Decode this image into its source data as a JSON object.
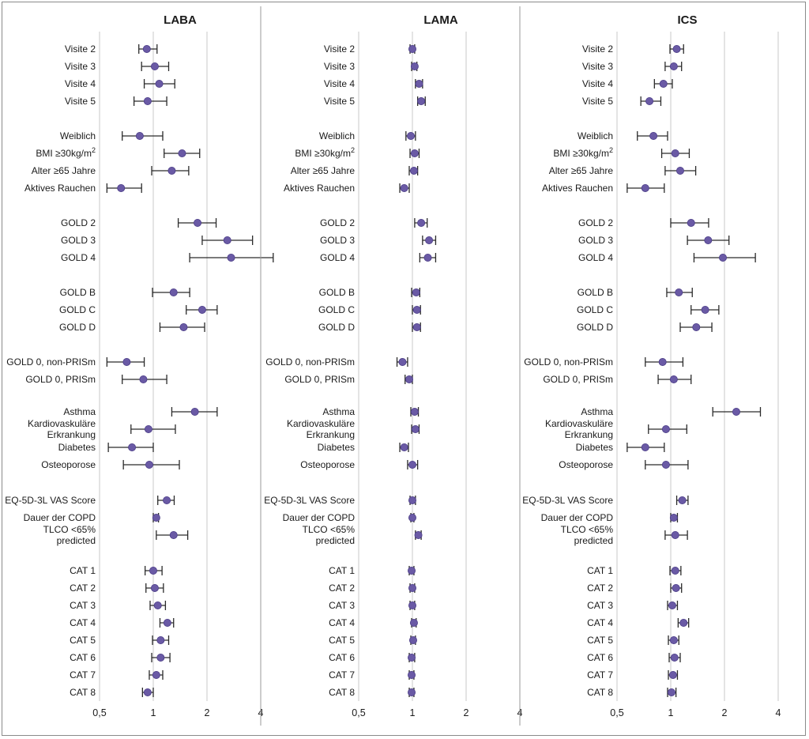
{
  "colors": {
    "point": "#6a5aa5",
    "point_stroke": "#4a3c86",
    "whisker": "#2a2a2a",
    "gridline": "#c8c8c8",
    "divider": "#9a9a9a",
    "text": "#1a1a1a"
  },
  "chart_data": [
    {
      "type": "scatter",
      "title": "LABA",
      "x_scale": "log",
      "xlim": [
        0.5,
        4
      ],
      "x_ticks": [
        0.5,
        1,
        2,
        4
      ],
      "x_tick_labels": [
        "0,5",
        "1",
        "2",
        "4"
      ],
      "rows": [
        {
          "label": "Visite 2",
          "est": 0.92,
          "lo": 0.83,
          "hi": 1.05
        },
        {
          "label": "Visite 3",
          "est": 1.02,
          "lo": 0.86,
          "hi": 1.22
        },
        {
          "label": "Visite 4",
          "est": 1.08,
          "lo": 0.89,
          "hi": 1.32
        },
        {
          "label": "Visite 5",
          "est": 0.93,
          "lo": 0.78,
          "hi": 1.19
        },
        {
          "label": "Weiblich",
          "est": 0.84,
          "lo": 0.67,
          "hi": 1.13
        },
        {
          "label": "BMI ≥30kg/m²",
          "est": 1.45,
          "lo": 1.15,
          "hi": 1.82
        },
        {
          "label": "Alter ≥65 Jahre",
          "est": 1.27,
          "lo": 0.98,
          "hi": 1.58
        },
        {
          "label": "Aktives Rauchen",
          "est": 0.66,
          "lo": 0.55,
          "hi": 0.86
        },
        {
          "label": "GOLD 2",
          "est": 1.77,
          "lo": 1.38,
          "hi": 2.25
        },
        {
          "label": "GOLD 3",
          "est": 2.6,
          "lo": 1.88,
          "hi": 3.6
        },
        {
          "label": "GOLD 4",
          "est": 2.73,
          "lo": 1.6,
          "hi": 4.7
        },
        {
          "label": "GOLD B",
          "est": 1.3,
          "lo": 0.99,
          "hi": 1.6
        },
        {
          "label": "GOLD C",
          "est": 1.88,
          "lo": 1.53,
          "hi": 2.28
        },
        {
          "label": "GOLD D",
          "est": 1.48,
          "lo": 1.09,
          "hi": 1.94
        },
        {
          "label": "GOLD 0, non-PRISm",
          "est": 0.71,
          "lo": 0.55,
          "hi": 0.89
        },
        {
          "label": "GOLD 0, PRISm",
          "est": 0.88,
          "lo": 0.67,
          "hi": 1.19
        },
        {
          "label": "Asthma",
          "est": 1.71,
          "lo": 1.27,
          "hi": 2.28
        },
        {
          "label": "Kardiovaskuläre Erkrankung",
          "est": 0.94,
          "lo": 0.75,
          "hi": 1.33
        },
        {
          "label": "Diabetes",
          "est": 0.76,
          "lo": 0.56,
          "hi": 1.0
        },
        {
          "label": "Osteoporose",
          "est": 0.95,
          "lo": 0.68,
          "hi": 1.4
        },
        {
          "label": "EQ-5D-3L VAS Score",
          "est": 1.19,
          "lo": 1.06,
          "hi": 1.31
        },
        {
          "label": "Dauer der COPD",
          "est": 1.04,
          "lo": 1.0,
          "hi": 1.07
        },
        {
          "label": "TLCO <65% predicted",
          "est": 1.3,
          "lo": 1.04,
          "hi": 1.56
        },
        {
          "label": "CAT 1",
          "est": 1.0,
          "lo": 0.9,
          "hi": 1.12
        },
        {
          "label": "CAT 2",
          "est": 1.02,
          "lo": 0.91,
          "hi": 1.14
        },
        {
          "label": "CAT 3",
          "est": 1.06,
          "lo": 0.96,
          "hi": 1.17
        },
        {
          "label": "CAT 4",
          "est": 1.2,
          "lo": 1.09,
          "hi": 1.3
        },
        {
          "label": "CAT 5",
          "est": 1.1,
          "lo": 0.99,
          "hi": 1.22
        },
        {
          "label": "CAT 6",
          "est": 1.1,
          "lo": 0.98,
          "hi": 1.24
        },
        {
          "label": "CAT 7",
          "est": 1.04,
          "lo": 0.95,
          "hi": 1.13
        },
        {
          "label": "CAT 8",
          "est": 0.93,
          "lo": 0.87,
          "hi": 1.0
        }
      ]
    },
    {
      "type": "scatter",
      "title": "LAMA",
      "x_scale": "log",
      "xlim": [
        0.5,
        4
      ],
      "x_ticks": [
        0.5,
        1,
        2,
        4
      ],
      "x_tick_labels": [
        "0,5",
        "1",
        "2",
        "4"
      ],
      "rows": [
        {
          "label": "Visite 2",
          "est": 1.0,
          "lo": 0.97,
          "hi": 1.03
        },
        {
          "label": "Visite 3",
          "est": 1.03,
          "lo": 0.99,
          "hi": 1.06
        },
        {
          "label": "Visite 4",
          "est": 1.09,
          "lo": 1.04,
          "hi": 1.14
        },
        {
          "label": "Visite 5",
          "est": 1.12,
          "lo": 1.07,
          "hi": 1.18
        },
        {
          "label": "Weiblich",
          "est": 0.98,
          "lo": 0.92,
          "hi": 1.04
        },
        {
          "label": "BMI ≥30kg/m²",
          "est": 1.03,
          "lo": 0.97,
          "hi": 1.09
        },
        {
          "label": "Alter ≥65 Jahre",
          "est": 1.02,
          "lo": 0.96,
          "hi": 1.07
        },
        {
          "label": "Aktives Rauchen",
          "est": 0.9,
          "lo": 0.85,
          "hi": 0.96
        },
        {
          "label": "GOLD 2",
          "est": 1.12,
          "lo": 1.03,
          "hi": 1.21
        },
        {
          "label": "GOLD 3",
          "est": 1.24,
          "lo": 1.14,
          "hi": 1.35
        },
        {
          "label": "GOLD 4",
          "est": 1.22,
          "lo": 1.1,
          "hi": 1.35
        },
        {
          "label": "GOLD B",
          "est": 1.05,
          "lo": 0.99,
          "hi": 1.1
        },
        {
          "label": "GOLD C",
          "est": 1.06,
          "lo": 1.0,
          "hi": 1.11
        },
        {
          "label": "GOLD D",
          "est": 1.06,
          "lo": 1.0,
          "hi": 1.11
        },
        {
          "label": "GOLD 0, non-PRISm",
          "est": 0.88,
          "lo": 0.82,
          "hi": 0.94
        },
        {
          "label": "GOLD 0, PRISm",
          "est": 0.96,
          "lo": 0.91,
          "hi": 1.0
        },
        {
          "label": "Asthma",
          "est": 1.03,
          "lo": 0.98,
          "hi": 1.08
        },
        {
          "label": "Kardiovaskuläre Erkrankung",
          "est": 1.04,
          "lo": 0.99,
          "hi": 1.09
        },
        {
          "label": "Diabetes",
          "est": 0.9,
          "lo": 0.85,
          "hi": 0.95
        },
        {
          "label": "Osteoporose",
          "est": 1.0,
          "lo": 0.94,
          "hi": 1.07
        },
        {
          "label": "EQ-5D-3L VAS Score",
          "est": 1.0,
          "lo": 0.97,
          "hi": 1.04
        },
        {
          "label": "Dauer der COPD",
          "est": 1.0,
          "lo": 0.98,
          "hi": 1.02
        },
        {
          "label": "TLCO <65% predicted",
          "est": 1.08,
          "lo": 1.04,
          "hi": 1.12
        },
        {
          "label": "CAT 1",
          "est": 0.99,
          "lo": 0.96,
          "hi": 1.02
        },
        {
          "label": "CAT 2",
          "est": 1.0,
          "lo": 0.97,
          "hi": 1.03
        },
        {
          "label": "CAT 3",
          "est": 1.0,
          "lo": 0.97,
          "hi": 1.03
        },
        {
          "label": "CAT 4",
          "est": 1.02,
          "lo": 0.99,
          "hi": 1.05
        },
        {
          "label": "CAT 5",
          "est": 1.01,
          "lo": 0.98,
          "hi": 1.04
        },
        {
          "label": "CAT 6",
          "est": 0.99,
          "lo": 0.96,
          "hi": 1.03
        },
        {
          "label": "CAT 7",
          "est": 0.99,
          "lo": 0.96,
          "hi": 1.02
        },
        {
          "label": "CAT 8",
          "est": 0.99,
          "lo": 0.96,
          "hi": 1.02
        }
      ]
    },
    {
      "type": "scatter",
      "title": "ICS",
      "x_scale": "log",
      "xlim": [
        0.5,
        4
      ],
      "x_ticks": [
        0.5,
        1,
        2,
        4
      ],
      "x_tick_labels": [
        "0,5",
        "1",
        "2",
        "4"
      ],
      "rows": [
        {
          "label": "Visite 2",
          "est": 1.08,
          "lo": 0.99,
          "hi": 1.18
        },
        {
          "label": "Visite 3",
          "est": 1.04,
          "lo": 0.93,
          "hi": 1.15
        },
        {
          "label": "Visite 4",
          "est": 0.91,
          "lo": 0.81,
          "hi": 1.02
        },
        {
          "label": "Visite 5",
          "est": 0.76,
          "lo": 0.68,
          "hi": 0.88
        },
        {
          "label": "Weiblich",
          "est": 0.8,
          "lo": 0.65,
          "hi": 0.96
        },
        {
          "label": "BMI ≥30kg/m²",
          "est": 1.06,
          "lo": 0.89,
          "hi": 1.27
        },
        {
          "label": "Alter ≥65 Jahre",
          "est": 1.13,
          "lo": 0.93,
          "hi": 1.38
        },
        {
          "label": "Aktives Rauchen",
          "est": 0.72,
          "lo": 0.57,
          "hi": 0.92
        },
        {
          "label": "GOLD 2",
          "est": 1.3,
          "lo": 1.0,
          "hi": 1.63
        },
        {
          "label": "GOLD 3",
          "est": 1.62,
          "lo": 1.24,
          "hi": 2.12
        },
        {
          "label": "GOLD 4",
          "est": 1.96,
          "lo": 1.35,
          "hi": 2.98
        },
        {
          "label": "GOLD B",
          "est": 1.11,
          "lo": 0.95,
          "hi": 1.32
        },
        {
          "label": "GOLD C",
          "est": 1.56,
          "lo": 1.3,
          "hi": 1.86
        },
        {
          "label": "GOLD D",
          "est": 1.39,
          "lo": 1.13,
          "hi": 1.7
        },
        {
          "label": "GOLD 0, non-PRISm",
          "est": 0.9,
          "lo": 0.72,
          "hi": 1.17
        },
        {
          "label": "GOLD 0, PRISm",
          "est": 1.04,
          "lo": 0.85,
          "hi": 1.3
        },
        {
          "label": "Asthma",
          "est": 2.33,
          "lo": 1.72,
          "hi": 3.18
        },
        {
          "label": "Kardiovaskuläre Erkrankung",
          "est": 0.94,
          "lo": 0.75,
          "hi": 1.23
        },
        {
          "label": "Diabetes",
          "est": 0.72,
          "lo": 0.57,
          "hi": 0.92
        },
        {
          "label": "Osteoporose",
          "est": 0.94,
          "lo": 0.72,
          "hi": 1.25
        },
        {
          "label": "EQ-5D-3L VAS Score",
          "est": 1.16,
          "lo": 1.08,
          "hi": 1.25
        },
        {
          "label": "Dauer der COPD",
          "est": 1.04,
          "lo": 1.0,
          "hi": 1.09
        },
        {
          "label": "TLCO <65% predicted",
          "est": 1.06,
          "lo": 0.93,
          "hi": 1.24
        },
        {
          "label": "CAT 1",
          "est": 1.06,
          "lo": 0.99,
          "hi": 1.14
        },
        {
          "label": "CAT 2",
          "est": 1.07,
          "lo": 1.0,
          "hi": 1.15
        },
        {
          "label": "CAT 3",
          "est": 1.02,
          "lo": 0.96,
          "hi": 1.09
        },
        {
          "label": "CAT 4",
          "est": 1.18,
          "lo": 1.1,
          "hi": 1.26
        },
        {
          "label": "CAT 5",
          "est": 1.04,
          "lo": 0.97,
          "hi": 1.11
        },
        {
          "label": "CAT 6",
          "est": 1.05,
          "lo": 0.98,
          "hi": 1.13
        },
        {
          "label": "CAT 7",
          "est": 1.03,
          "lo": 0.97,
          "hi": 1.09
        },
        {
          "label": "CAT 8",
          "est": 1.01,
          "lo": 0.96,
          "hi": 1.07
        }
      ]
    }
  ]
}
